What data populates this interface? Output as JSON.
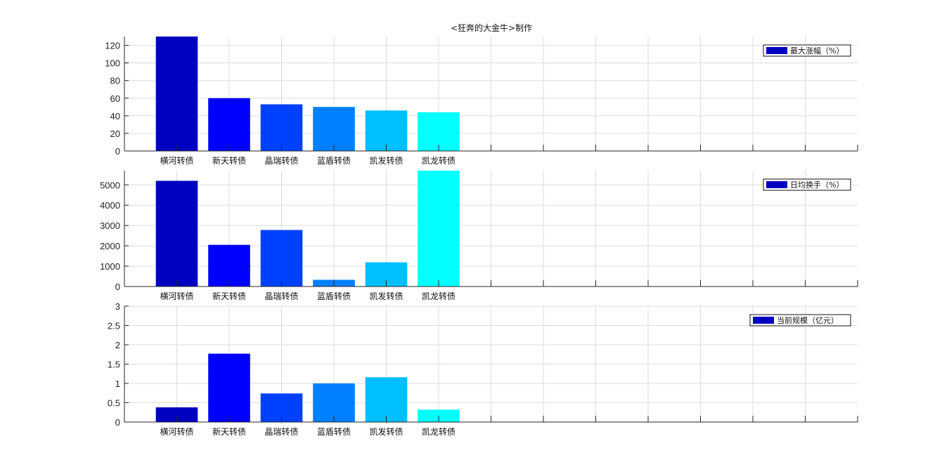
{
  "title": "<狂奔的大金牛>制作",
  "chart_data": [
    {
      "type": "bar",
      "categories": [
        "横河转债",
        "新天转债",
        "晶瑞转债",
        "蓝盾转债",
        "凯发转债",
        "凯龙转债"
      ],
      "values": [
        130,
        60,
        53,
        50,
        46,
        44
      ],
      "legend": "最大涨幅（%）",
      "legend_placement": "top-right",
      "ylim": [
        0,
        130
      ],
      "yticks": [
        0,
        20,
        40,
        60,
        80,
        100,
        120
      ],
      "xlim": [
        0,
        14
      ],
      "grid": true
    },
    {
      "type": "bar",
      "categories": [
        "横河转债",
        "新天转债",
        "晶瑞转债",
        "蓝盾转债",
        "凯发转债",
        "凯龙转债"
      ],
      "values": [
        5200,
        2050,
        2780,
        330,
        1190,
        5700
      ],
      "legend": "日均换手（%）",
      "legend_placement": "top-right",
      "ylim": [
        0,
        5700
      ],
      "yticks": [
        0,
        1000,
        2000,
        3000,
        4000,
        5000
      ],
      "xlim": [
        0,
        14
      ],
      "grid": true
    },
    {
      "type": "bar",
      "categories": [
        "横河转债",
        "新天转债",
        "晶瑞转债",
        "蓝盾转债",
        "凯发转债",
        "凯龙转债"
      ],
      "values": [
        0.38,
        1.77,
        0.74,
        1.0,
        1.16,
        0.32
      ],
      "legend": "当前规模（亿元）",
      "legend_placement": "top-right",
      "ylim": [
        0,
        3
      ],
      "yticks": [
        0,
        0.5,
        1,
        1.5,
        2,
        2.5,
        3
      ],
      "xlim": [
        0,
        14
      ],
      "grid": true
    }
  ],
  "colors": {
    "bars": [
      "#0000bf",
      "#0000ff",
      "#0040ff",
      "#0080ff",
      "#00bfff",
      "#00ffff"
    ],
    "legend_patch": "#0000bf",
    "grid": "#dcdcdc",
    "axis": "#262626"
  }
}
